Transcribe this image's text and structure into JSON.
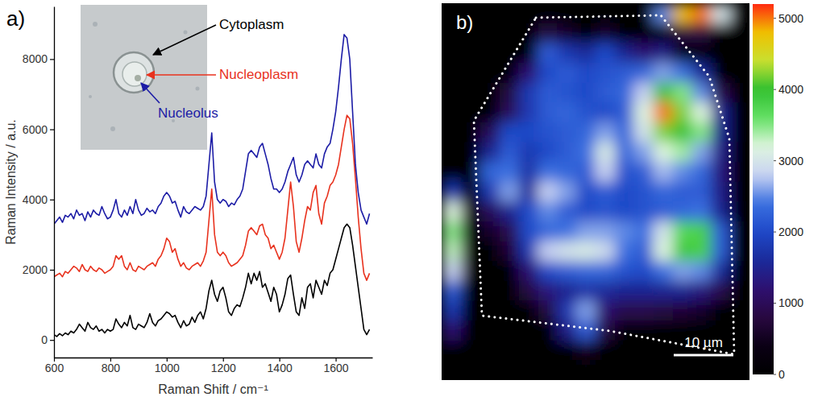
{
  "chart_data": [
    {
      "type": "line",
      "title": "a)",
      "x_label": "Raman Shift / cm⁻¹",
      "y_label": "Raman Intensity / a.u.",
      "xlim": [
        600,
        1730
      ],
      "xticks": [
        600,
        800,
        1000,
        1200,
        1400,
        1600
      ],
      "ylim": [
        -500,
        9500
      ],
      "yticks": [
        0,
        2000,
        4000,
        6000,
        8000
      ],
      "x": [
        600,
        610,
        620,
        630,
        640,
        650,
        660,
        670,
        680,
        690,
        700,
        710,
        720,
        730,
        740,
        750,
        760,
        770,
        780,
        790,
        800,
        810,
        820,
        830,
        840,
        850,
        860,
        870,
        880,
        890,
        900,
        910,
        920,
        930,
        940,
        950,
        960,
        970,
        980,
        990,
        1000,
        1010,
        1020,
        1030,
        1040,
        1050,
        1060,
        1070,
        1080,
        1090,
        1100,
        1110,
        1120,
        1130,
        1140,
        1150,
        1160,
        1170,
        1180,
        1190,
        1200,
        1210,
        1220,
        1230,
        1240,
        1250,
        1260,
        1270,
        1280,
        1290,
        1300,
        1310,
        1320,
        1330,
        1340,
        1350,
        1360,
        1370,
        1380,
        1390,
        1400,
        1410,
        1420,
        1430,
        1440,
        1450,
        1460,
        1470,
        1480,
        1490,
        1500,
        1510,
        1520,
        1530,
        1540,
        1550,
        1560,
        1570,
        1580,
        1590,
        1600,
        1610,
        1620,
        1630,
        1640,
        1650,
        1660,
        1670,
        1680,
        1690,
        1700,
        1710,
        1720
      ],
      "series": [
        {
          "name": "Cytoplasm",
          "color": "#000000",
          "values": [
            150,
            100,
            180,
            120,
            200,
            150,
            250,
            200,
            300,
            450,
            350,
            250,
            500,
            350,
            300,
            400,
            250,
            300,
            200,
            300,
            250,
            300,
            600,
            450,
            350,
            500,
            400,
            700,
            350,
            300,
            450,
            400,
            350,
            500,
            750,
            500,
            400,
            550,
            600,
            700,
            800,
            750,
            650,
            700,
            500,
            350,
            550,
            400,
            450,
            650,
            500,
            700,
            800,
            600,
            900,
            1400,
            1700,
            1300,
            1100,
            1400,
            1500,
            1200,
            800,
            700,
            900,
            1000,
            950,
            1200,
            1500,
            1900,
            1600,
            1900,
            1700,
            1950,
            1500,
            1600,
            1350,
            1100,
            1500,
            1300,
            800,
            1000,
            1300,
            1750,
            1850,
            1300,
            800,
            700,
            1200,
            900,
            1500,
            1600,
            1200,
            1700,
            1500,
            1300,
            1700,
            1550,
            1900,
            2000,
            2300,
            2600,
            2900,
            3200,
            3300,
            3200,
            2700,
            2100,
            1500,
            900,
            300,
            150,
            300
          ]
        },
        {
          "name": "Nucleoplasm",
          "color": "#e8321e",
          "values": [
            1800,
            1850,
            1900,
            1800,
            1950,
            1900,
            2000,
            2100,
            2050,
            1950,
            2150,
            2000,
            1950,
            2100,
            2000,
            1950,
            2050,
            2000,
            1900,
            1950,
            2000,
            2100,
            2400,
            2300,
            2400,
            2100,
            2000,
            2200,
            2000,
            1950,
            2100,
            2050,
            2000,
            2100,
            2150,
            2200,
            2100,
            2300,
            2400,
            2600,
            2900,
            2800,
            2500,
            2600,
            2300,
            2100,
            2200,
            2050,
            2000,
            2100,
            2150,
            2200,
            2100,
            2250,
            2500,
            3400,
            4300,
            3000,
            2500,
            2400,
            2500,
            2400,
            2200,
            2100,
            2150,
            2200,
            2300,
            2400,
            2700,
            3100,
            3200,
            3100,
            3000,
            3250,
            3300,
            3000,
            2900,
            2600,
            2700,
            2500,
            2300,
            2500,
            2900,
            3700,
            4500,
            3800,
            2800,
            2500,
            2900,
            3400,
            3800,
            3700,
            4200,
            4400,
            3600,
            3300,
            3900,
            4100,
            4400,
            4500,
            4700,
            5000,
            5500,
            6000,
            6400,
            6300,
            5600,
            4600,
            3500,
            2600,
            1900,
            1700,
            1900
          ]
        },
        {
          "name": "Nucleolus",
          "color": "#1c1ca6",
          "values": [
            3300,
            3400,
            3500,
            3350,
            3550,
            3500,
            3600,
            3450,
            3700,
            3550,
            3600,
            3400,
            3650,
            3500,
            3700,
            3600,
            3550,
            3800,
            3600,
            3450,
            3500,
            3700,
            4000,
            3600,
            3500,
            3700,
            3550,
            3800,
            3600,
            4000,
            3700,
            3550,
            3600,
            3750,
            3650,
            3700,
            3600,
            3800,
            3900,
            4100,
            4200,
            4100,
            3900,
            3950,
            3700,
            3500,
            3800,
            3650,
            3600,
            3700,
            3800,
            3750,
            3700,
            3800,
            4100,
            5000,
            5900,
            4500,
            4000,
            3900,
            4000,
            3950,
            3800,
            3900,
            3850,
            4000,
            4100,
            4300,
            4800,
            5300,
            5400,
            5300,
            5200,
            5500,
            5600,
            5300,
            5000,
            4600,
            4300,
            4300,
            4200,
            4300,
            4500,
            4800,
            5000,
            5200,
            4700,
            4500,
            4700,
            5000,
            5100,
            5000,
            4900,
            5300,
            5000,
            4900,
            5300,
            5500,
            5600,
            6000,
            6500,
            7200,
            8000,
            8700,
            8600,
            8000,
            6500,
            5000,
            4200,
            3700,
            3500,
            3300,
            3600
          ]
        }
      ]
    },
    {
      "type": "heatmap",
      "title": "b)",
      "tick_labels": false,
      "annotations": [
        "10 µm"
      ],
      "color_range": [
        0,
        5200
      ],
      "color_ticks": [
        0,
        1000,
        2000,
        3000,
        4000,
        5000
      ],
      "cells": [
        [
          0,
          0,
          0,
          0,
          0,
          0,
          0,
          0,
          0,
          0,
          0,
          2500,
          4800,
          5000,
          3000,
          0
        ],
        [
          0,
          0,
          0,
          0,
          0,
          800,
          600,
          0,
          600,
          0,
          0,
          0,
          800,
          800,
          0,
          0
        ],
        [
          0,
          0,
          0,
          0,
          0,
          2200,
          1800,
          1600,
          2000,
          1500,
          1200,
          1400,
          0,
          0,
          0,
          0
        ],
        [
          0,
          0,
          0,
          0,
          1200,
          2000,
          2200,
          2000,
          2100,
          2200,
          2300,
          2600,
          2400,
          1600,
          0,
          0
        ],
        [
          0,
          0,
          0,
          800,
          1800,
          2200,
          2100,
          2000,
          2200,
          2300,
          2800,
          4000,
          3500,
          2500,
          900,
          0
        ],
        [
          0,
          0,
          0,
          1000,
          1800,
          2200,
          2300,
          2100,
          2000,
          2200,
          3200,
          5000,
          4200,
          3200,
          1500,
          0
        ],
        [
          0,
          0,
          1000,
          2000,
          2000,
          2100,
          2200,
          2300,
          2600,
          2300,
          3000,
          4200,
          4000,
          3500,
          1500,
          0
        ],
        [
          0,
          0,
          1500,
          2200,
          1800,
          2000,
          2200,
          2400,
          3100,
          2300,
          2600,
          3200,
          3400,
          2600,
          1400,
          0
        ],
        [
          0,
          0,
          2300,
          2400,
          1700,
          2400,
          2300,
          2200,
          2800,
          2100,
          2200,
          2700,
          2500,
          2300,
          1300,
          0
        ],
        [
          1800,
          0,
          1800,
          2600,
          1600,
          2800,
          2600,
          2000,
          2200,
          2000,
          2100,
          2300,
          2200,
          2200,
          1400,
          0
        ],
        [
          3200,
          0,
          1000,
          1500,
          2000,
          2500,
          2200,
          2000,
          2100,
          2000,
          2100,
          2200,
          2300,
          2400,
          1500,
          0
        ],
        [
          3500,
          0,
          600,
          900,
          2000,
          2300,
          2400,
          2600,
          2600,
          2500,
          2400,
          3000,
          3700,
          3800,
          2200,
          0
        ],
        [
          3300,
          0,
          0,
          700,
          1800,
          2800,
          3000,
          3100,
          2900,
          2400,
          2200,
          3200,
          3900,
          3800,
          2200,
          0
        ],
        [
          2800,
          0,
          0,
          0,
          1200,
          2000,
          2200,
          2300,
          2300,
          2100,
          2000,
          2400,
          2600,
          2500,
          1600,
          0
        ],
        [
          2200,
          0,
          0,
          0,
          800,
          1300,
          1500,
          1700,
          1600,
          1500,
          1500,
          1500,
          1500,
          1300,
          900,
          0
        ],
        [
          1800,
          0,
          0,
          0,
          0,
          800,
          1800,
          2600,
          1200,
          900,
          900,
          800,
          700,
          600,
          0,
          0
        ],
        [
          1200,
          0,
          0,
          0,
          0,
          0,
          1400,
          2200,
          800,
          0,
          0,
          0,
          0,
          0,
          0,
          0
        ],
        [
          0,
          0,
          0,
          0,
          0,
          0,
          0,
          500,
          0,
          0,
          0,
          0,
          0,
          0,
          0,
          0
        ],
        [
          0,
          0,
          0,
          0,
          0,
          0,
          0,
          0,
          0,
          0,
          0,
          0,
          0,
          0,
          0,
          0
        ]
      ]
    }
  ]
}
